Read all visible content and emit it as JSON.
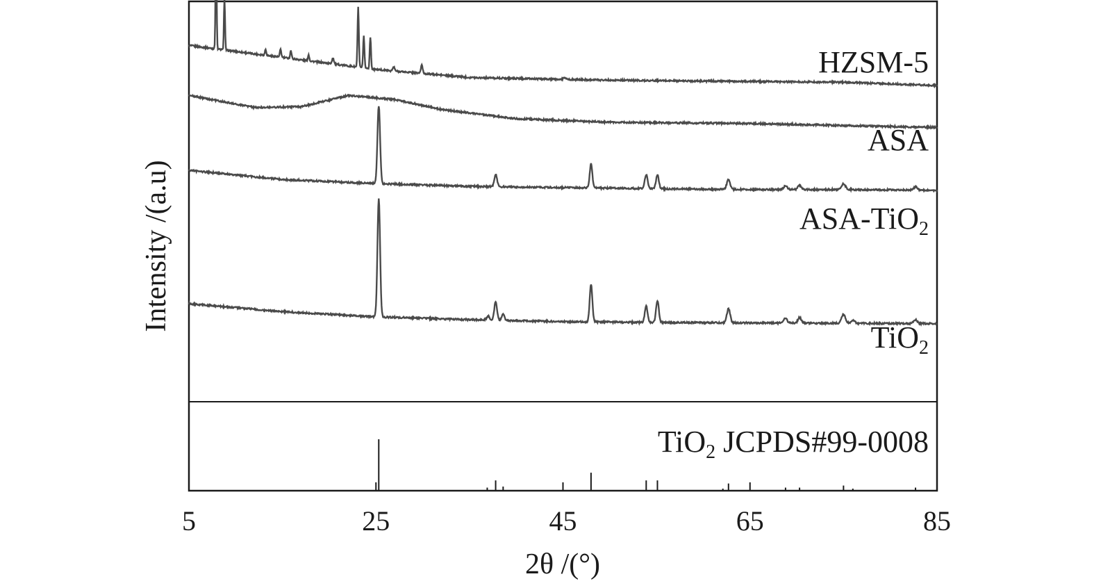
{
  "chart_data": {
    "type": "line",
    "title": "",
    "xlabel": "2θ /(°)",
    "ylabel": "Intensity /(a.u)",
    "xlim": [
      5,
      85
    ],
    "x_ticks": [
      "5",
      "25",
      "45",
      "65",
      "85"
    ],
    "y_ticks": [],
    "grid": false,
    "legend": "none (series labelled directly at right end of each trace)",
    "line_color": "#4a4a4a",
    "series": [
      {
        "name": "HZSM-5",
        "baseline": [
          [
            5,
            0.89
          ],
          [
            15,
            0.86
          ],
          [
            25,
            0.83
          ],
          [
            35,
            0.81
          ],
          [
            45,
            0.805
          ],
          [
            55,
            0.802
          ],
          [
            65,
            0.8
          ],
          [
            75,
            0.798
          ],
          [
            85,
            0.79
          ]
        ],
        "peaks": [
          [
            7.9,
            0.26,
            0.12
          ],
          [
            8.8,
            0.13,
            0.12
          ],
          [
            13.2,
            0.015,
            0.15
          ],
          [
            14.8,
            0.02,
            0.15
          ],
          [
            15.9,
            0.02,
            0.15
          ],
          [
            17.8,
            0.015,
            0.15
          ],
          [
            20.4,
            0.015,
            0.2
          ],
          [
            23.1,
            0.15,
            0.14
          ],
          [
            23.7,
            0.08,
            0.14
          ],
          [
            24.4,
            0.08,
            0.14
          ],
          [
            26.9,
            0.01,
            0.2
          ],
          [
            29.9,
            0.02,
            0.2
          ],
          [
            45.2,
            0.005,
            0.3
          ]
        ]
      },
      {
        "name": "ASA",
        "baseline": [
          [
            5,
            0.765
          ],
          [
            12,
            0.735
          ],
          [
            17,
            0.737
          ],
          [
            22,
            0.765
          ],
          [
            27,
            0.755
          ],
          [
            32,
            0.73
          ],
          [
            40,
            0.707
          ],
          [
            50,
            0.698
          ],
          [
            65,
            0.695
          ],
          [
            85,
            0.685
          ]
        ],
        "peaks": []
      },
      {
        "name": "ASA-TiO2",
        "baseline": [
          [
            5,
            0.578
          ],
          [
            15,
            0.555
          ],
          [
            25,
            0.545
          ],
          [
            35,
            0.538
          ],
          [
            45,
            0.535
          ],
          [
            55,
            0.532
          ],
          [
            65,
            0.53
          ],
          [
            75,
            0.53
          ],
          [
            85,
            0.528
          ]
        ],
        "peaks": [
          [
            25.3,
            0.195,
            0.28
          ],
          [
            37.8,
            0.03,
            0.3
          ],
          [
            48.0,
            0.06,
            0.28
          ],
          [
            53.9,
            0.035,
            0.3
          ],
          [
            55.1,
            0.035,
            0.3
          ],
          [
            62.7,
            0.025,
            0.35
          ],
          [
            68.8,
            0.01,
            0.35
          ],
          [
            70.3,
            0.01,
            0.35
          ],
          [
            75.0,
            0.015,
            0.4
          ],
          [
            82.7,
            0.008,
            0.4
          ]
        ]
      },
      {
        "name": "TiO2",
        "baseline": [
          [
            5,
            0.245
          ],
          [
            15,
            0.225
          ],
          [
            25,
            0.212
          ],
          [
            35,
            0.205
          ],
          [
            45,
            0.2
          ],
          [
            55,
            0.198
          ],
          [
            65,
            0.197
          ],
          [
            75,
            0.196
          ],
          [
            85,
            0.195
          ]
        ],
        "peaks": [
          [
            25.3,
            0.295,
            0.28
          ],
          [
            37.0,
            0.01,
            0.3
          ],
          [
            37.8,
            0.045,
            0.3
          ],
          [
            38.6,
            0.015,
            0.3
          ],
          [
            48.0,
            0.095,
            0.28
          ],
          [
            53.9,
            0.04,
            0.3
          ],
          [
            55.1,
            0.055,
            0.3
          ],
          [
            62.7,
            0.035,
            0.35
          ],
          [
            68.8,
            0.012,
            0.35
          ],
          [
            70.3,
            0.014,
            0.35
          ],
          [
            75.0,
            0.022,
            0.4
          ],
          [
            76.0,
            0.008,
            0.4
          ],
          [
            82.7,
            0.01,
            0.4
          ]
        ]
      }
    ],
    "reference": {
      "name": "TiO2 JCPDS#99-0008",
      "lines": [
        [
          25.3,
          1.0
        ],
        [
          36.9,
          0.06
        ],
        [
          37.8,
          0.2
        ],
        [
          38.6,
          0.08
        ],
        [
          48.0,
          0.35
        ],
        [
          53.9,
          0.2
        ],
        [
          55.1,
          0.2
        ],
        [
          62.1,
          0.04
        ],
        [
          62.7,
          0.14
        ],
        [
          68.8,
          0.06
        ],
        [
          70.3,
          0.06
        ],
        [
          74.1,
          0.01
        ],
        [
          75.0,
          0.1
        ],
        [
          76.0,
          0.04
        ],
        [
          80.7,
          0.01
        ],
        [
          82.7,
          0.06
        ]
      ]
    },
    "labels": {
      "hzsm5": "HZSM-5",
      "asa": "ASA",
      "asa_tio2_main": "ASA-TiO",
      "asa_tio2_sub": "2",
      "tio2_main": "TiO",
      "tio2_sub": "2",
      "ref_main": "TiO",
      "ref_sub": "2",
      "ref_rest": " JCPDS#99-0008"
    }
  }
}
